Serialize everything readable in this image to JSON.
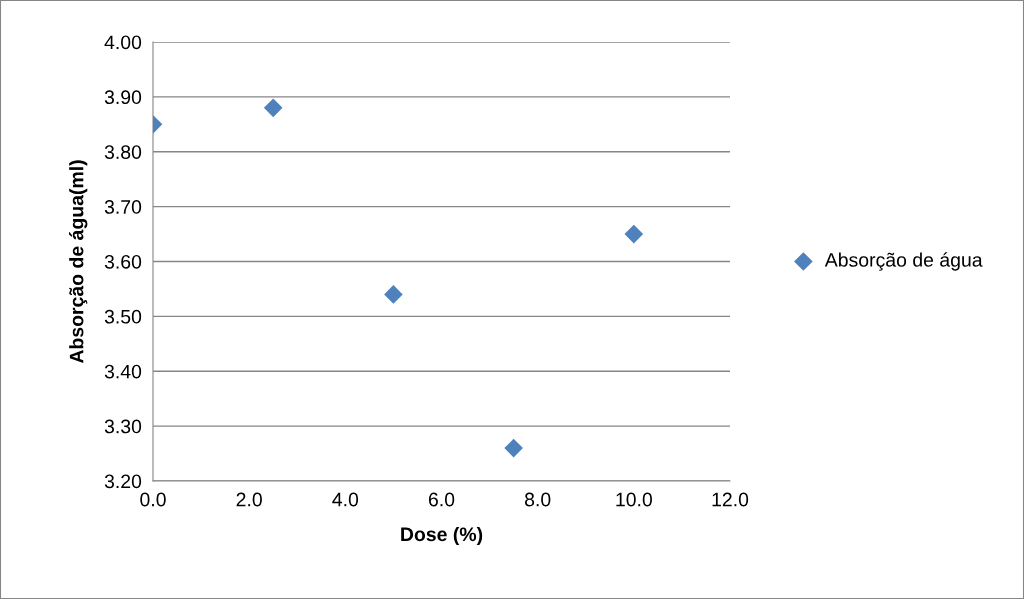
{
  "chart_data": {
    "type": "scatter",
    "xlabel": "Dose (%)",
    "ylabel": "Absorção de água(ml)",
    "x": [
      0,
      2.5,
      5,
      7.5,
      10
    ],
    "series": [
      {
        "name": "Absorção de água",
        "color": "#4f81bd",
        "values": [
          3.85,
          3.88,
          3.54,
          3.26,
          3.65
        ]
      }
    ],
    "xlim": [
      0,
      12
    ],
    "xticks": [
      {
        "value": 0,
        "label": "0.0"
      },
      {
        "value": 2,
        "label": "2.0"
      },
      {
        "value": 4,
        "label": "4.0"
      },
      {
        "value": 6,
        "label": "6.0"
      },
      {
        "value": 8,
        "label": "8.0"
      },
      {
        "value": 10,
        "label": "10.0"
      },
      {
        "value": 12,
        "label": "12.0"
      }
    ],
    "ylim": [
      3.2,
      4.0
    ],
    "yticks": [
      {
        "value": 3.2,
        "label": "3.20"
      },
      {
        "value": 3.3,
        "label": "3.30"
      },
      {
        "value": 3.4,
        "label": "3.40"
      },
      {
        "value": 3.5,
        "label": "3.50"
      },
      {
        "value": 3.6,
        "label": "3.60"
      },
      {
        "value": 3.7,
        "label": "3.70"
      },
      {
        "value": 3.8,
        "label": "3.80"
      },
      {
        "value": 3.9,
        "label": "3.90"
      },
      {
        "value": 4.0,
        "label": "4.00"
      }
    ],
    "grid": "y",
    "legend": "right",
    "marker": "diamond"
  }
}
